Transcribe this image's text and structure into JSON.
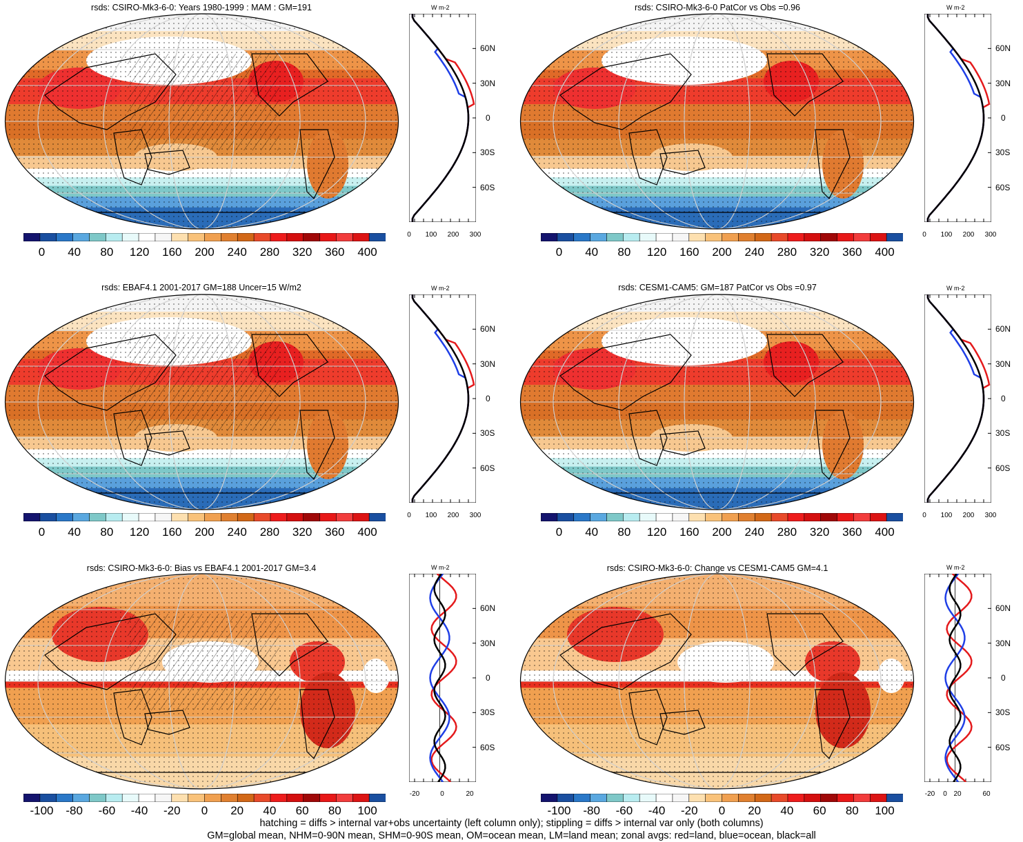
{
  "panels": [
    {
      "id": "p1",
      "title": "rsds: CSIRO-Mk3-6-0: Years 1980-1999 : MAM : GM=191",
      "colorbar_ticks": [
        "0",
        "40",
        "80",
        "120",
        "160",
        "200",
        "240",
        "280",
        "320",
        "360",
        "400"
      ],
      "zonal_unit": "W m-2",
      "zonal_lat_labels": [
        "60N",
        "30N",
        "0",
        "30S",
        "60S"
      ],
      "zonal_x_labels": [
        "0",
        "100",
        "200",
        "300"
      ]
    },
    {
      "id": "p2",
      "title": "rsds: CSIRO-Mk3-6-0 PatCor vs Obs =0.96",
      "colorbar_ticks": [
        "0",
        "40",
        "80",
        "120",
        "160",
        "200",
        "240",
        "280",
        "320",
        "360",
        "400"
      ],
      "zonal_unit": "W m-2",
      "zonal_lat_labels": [
        "60N",
        "30N",
        "0",
        "30S",
        "60S"
      ],
      "zonal_x_labels": [
        "0",
        "100",
        "200",
        "300"
      ]
    },
    {
      "id": "p3",
      "title": "rsds: EBAF4.1 2001-2017 GM=188 Uncer=15 W/m2",
      "colorbar_ticks": [
        "0",
        "40",
        "80",
        "120",
        "160",
        "200",
        "240",
        "280",
        "320",
        "360",
        "400"
      ],
      "zonal_unit": "W m-2",
      "zonal_lat_labels": [
        "60N",
        "30N",
        "0",
        "30S",
        "60S"
      ],
      "zonal_x_labels": [
        "0",
        "100",
        "200",
        "300"
      ]
    },
    {
      "id": "p4",
      "title": "rsds: CESM1-CAM5: GM=187 PatCor vs Obs =0.97",
      "colorbar_ticks": [
        "0",
        "40",
        "80",
        "120",
        "160",
        "200",
        "240",
        "280",
        "320",
        "360",
        "400"
      ],
      "zonal_unit": "W m-2",
      "zonal_lat_labels": [
        "60N",
        "30N",
        "0",
        "30S",
        "60S"
      ],
      "zonal_x_labels": [
        "0",
        "100",
        "200",
        "300"
      ]
    },
    {
      "id": "p5",
      "title": "rsds: CSIRO-Mk3-6-0: Bias vs EBAF4.1 2001-2017 GM=3.4",
      "colorbar_ticks": [
        "-100",
        "-80",
        "-60",
        "-40",
        "-20",
        "0",
        "20",
        "40",
        "60",
        "80",
        "100"
      ],
      "zonal_unit": "W m-2",
      "zonal_lat_labels": [
        "60N",
        "30N",
        "0",
        "30S",
        "60S"
      ],
      "zonal_x_labels": [
        "-20",
        "0",
        "20"
      ]
    },
    {
      "id": "p6",
      "title": "rsds: CSIRO-Mk3-6-0: Change vs CESM1-CAM5 GM=4.1",
      "colorbar_ticks": [
        "-100",
        "-80",
        "-60",
        "-40",
        "-20",
        "0",
        "20",
        "40",
        "60",
        "80",
        "100"
      ],
      "zonal_unit": "W m-2",
      "zonal_lat_labels": [
        "60N",
        "30N",
        "0",
        "30S",
        "60S"
      ],
      "zonal_x_labels": [
        "-20",
        "0",
        "20",
        "60"
      ]
    }
  ],
  "colorbar_colors": [
    "#14146e",
    "#1a4fa0",
    "#2a78c8",
    "#5aa8e0",
    "#7ec8c8",
    "#b8ecf0",
    "#e8fafa",
    "#ffffff",
    "#f6f6f6",
    "#fde0b0",
    "#f9c27a",
    "#f0a050",
    "#e08030",
    "#d26818",
    "#e84a2a",
    "#ee1c1c",
    "#d40f0f",
    "#a00808",
    "#e81818",
    "#f23c3c",
    "#dc1414",
    "#1a4fa0"
  ],
  "footnote": {
    "line1": "hatching = diffs > internal var+obs uncertainty (left column only); stippling = diffs > internal var only (both columns)",
    "line2": "GM=global mean, NHM=0-90N mean, SHM=0-90S mean, OM=ocean mean, LM=land mean; zonal avgs: red=land, blue=ocean, black=all"
  }
}
